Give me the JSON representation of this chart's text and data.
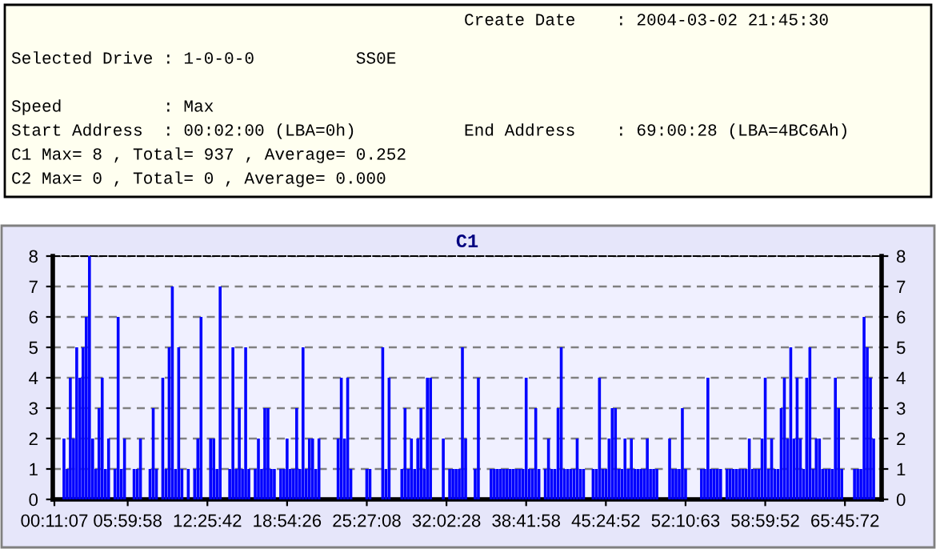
{
  "chart_data": {
    "type": "bar",
    "title": "C1",
    "categories": [
      "00:11:07",
      null,
      null,
      null,
      null,
      null,
      null,
      null,
      null,
      null,
      null,
      null,
      null,
      null,
      null,
      null,
      null,
      null,
      null,
      null,
      null,
      null,
      null,
      "05:59:58",
      null,
      null,
      null,
      null,
      null,
      null,
      null,
      null,
      null,
      null,
      null,
      null,
      null,
      null,
      null,
      null,
      null,
      null,
      null,
      null,
      null,
      null,
      null,
      null,
      "12:25:42",
      null,
      null,
      null,
      null,
      null,
      null,
      null,
      null,
      null,
      null,
      null,
      null,
      null,
      null,
      null,
      null,
      null,
      null,
      null,
      null,
      null,
      null,
      null,
      null,
      "18:54:26",
      null,
      null,
      null,
      null,
      null,
      null,
      null,
      null,
      null,
      null,
      null,
      null,
      null,
      null,
      null,
      null,
      null,
      null,
      null,
      null,
      null,
      null,
      null,
      null,
      "25:27:08",
      null,
      null,
      null,
      null,
      null,
      null,
      null,
      null,
      null,
      null,
      null,
      null,
      null,
      null,
      null,
      null,
      null,
      null,
      null,
      null,
      null,
      null,
      null,
      null,
      "32:02:28",
      null,
      null,
      null,
      null,
      null,
      null,
      null,
      null,
      null,
      null,
      null,
      null,
      null,
      null,
      null,
      null,
      null,
      null,
      null,
      null,
      null,
      null,
      null,
      null,
      "38:41:58",
      null,
      null,
      null,
      null,
      null,
      null,
      null,
      null,
      null,
      null,
      null,
      null,
      null,
      null,
      null,
      null,
      null,
      null,
      null,
      null,
      null,
      null,
      null,
      null,
      "45:24:52",
      null,
      null,
      null,
      null,
      null,
      null,
      null,
      null,
      null,
      null,
      null,
      null,
      null,
      null,
      null,
      null,
      null,
      null,
      null,
      null,
      null,
      null,
      null,
      null,
      "52:10:63",
      null,
      null,
      null,
      null,
      null,
      null,
      null,
      null,
      null,
      null,
      null,
      null,
      null,
      null,
      null,
      null,
      null,
      null,
      null,
      null,
      null,
      null,
      null,
      null,
      "58:59:52",
      null,
      null,
      null,
      null,
      null,
      null,
      null,
      null,
      null,
      null,
      null,
      null,
      null,
      null,
      null,
      null,
      null,
      null,
      null,
      null,
      null,
      null,
      null,
      null,
      "65:45:72",
      null,
      null,
      null,
      null,
      null,
      null,
      null,
      null,
      null,
      null,
      null
    ],
    "series": [
      {
        "color": "#0000ff",
        "values": [
          0,
          0,
          0,
          2,
          1,
          4,
          2,
          5,
          4,
          5,
          6,
          8,
          2,
          1,
          3,
          4,
          1,
          2,
          0,
          1,
          6,
          1,
          2,
          0,
          0,
          1,
          1,
          2,
          0,
          0,
          1,
          3,
          1,
          0,
          4,
          1,
          5,
          7,
          1,
          5,
          1,
          0,
          1,
          0,
          1,
          2,
          6,
          0,
          0,
          2,
          2,
          1,
          7,
          0,
          0,
          1,
          5,
          1,
          3,
          1,
          5,
          1,
          0,
          1,
          2,
          1,
          3,
          3,
          1,
          1,
          0,
          1,
          1,
          2,
          1,
          1,
          3,
          1,
          5,
          1,
          2,
          2,
          1,
          2,
          0,
          0,
          0,
          0,
          0,
          2,
          4,
          2,
          4,
          1,
          0,
          0,
          0,
          0,
          1,
          1,
          0,
          0,
          0,
          5,
          1,
          4,
          0,
          0,
          0,
          1,
          3,
          1,
          2,
          1,
          2,
          3,
          1,
          4,
          4,
          0,
          0,
          0,
          2,
          0,
          1,
          1,
          1,
          1,
          5,
          2,
          0,
          0,
          1,
          4,
          0,
          0,
          0,
          1,
          1,
          1,
          1,
          1,
          1,
          1,
          1,
          1,
          1,
          1,
          4,
          1,
          1,
          3,
          1,
          0,
          1,
          2,
          1,
          1,
          3,
          5,
          1,
          1,
          1,
          1,
          2,
          1,
          1,
          0,
          0,
          1,
          1,
          4,
          1,
          1,
          2,
          3,
          3,
          1,
          1,
          2,
          1,
          2,
          1,
          1,
          1,
          1,
          2,
          1,
          1,
          1,
          0,
          0,
          0,
          2,
          1,
          1,
          1,
          3,
          1,
          0,
          0,
          0,
          0,
          1,
          1,
          4,
          1,
          1,
          1,
          1,
          0,
          1,
          1,
          1,
          1,
          1,
          1,
          1,
          2,
          1,
          1,
          1,
          2,
          4,
          1,
          2,
          1,
          1,
          3,
          4,
          2,
          5,
          2,
          4,
          2,
          1,
          4,
          5,
          1,
          2,
          2,
          1,
          1,
          1,
          1,
          4,
          3,
          1,
          0,
          0,
          0,
          1,
          1,
          1,
          6,
          5,
          4,
          2,
          0,
          0
        ]
      }
    ],
    "ylim": [
      0,
      8
    ],
    "yticks": [
      0,
      1,
      2,
      3,
      4,
      5,
      6,
      7,
      8
    ],
    "y2lim": [
      0,
      8
    ],
    "y2ticks": [
      0,
      1,
      2,
      3,
      4,
      5,
      6,
      7,
      8
    ],
    "grid": "y",
    "annotations": [
      "Create Date    : 2004-03-02 21:45:30",
      "Selected Drive : 1-0-0-0          SS0E",
      "Speed          : Max",
      "Start Address  : 00:02:00 (LBA=0h)",
      "End Address    : 69:00:28 (LBA=4BC6Ah)",
      "C1 Max= 8 , Total= 937 , Average= 0.252",
      "C2 Max= 0 , Total= 0 , Average= 0.000"
    ]
  }
}
